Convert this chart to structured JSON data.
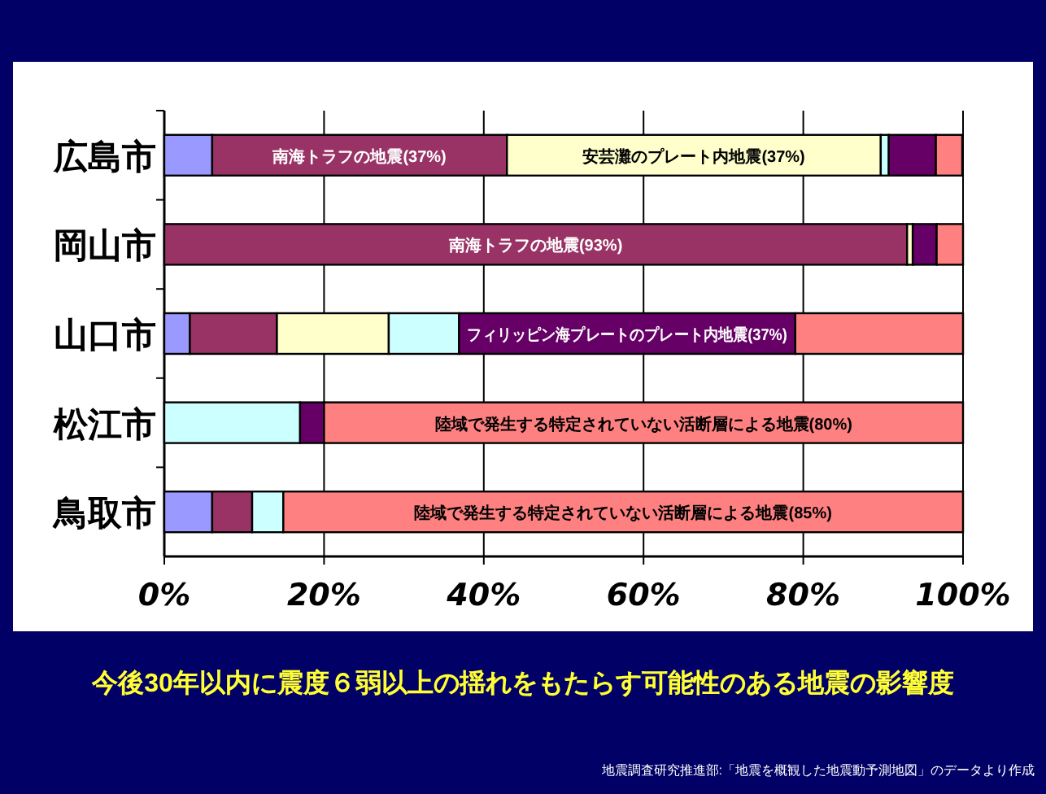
{
  "chart_data": {
    "type": "bar",
    "orientation": "horizontal",
    "stacked": true,
    "title": "今後30年以内に震度６弱以上の揺れをもたらす可能性のある地震の影響度",
    "annotations": [
      "地震調査研究推進部:「地震を概観した地震動予測地図」のデータより作成"
    ],
    "categories": [
      "広島市",
      "岡山市",
      "山口市",
      "松江市",
      "鳥取市"
    ],
    "xlim": [
      0,
      100
    ],
    "xticks": [
      {
        "value": 0,
        "label": "0%"
      },
      {
        "value": 20,
        "label": "20%"
      },
      {
        "value": 40,
        "label": "40%"
      },
      {
        "value": 60,
        "label": "60%"
      },
      {
        "value": 80,
        "label": "80%"
      },
      {
        "value": 100,
        "label": "100%"
      }
    ],
    "grid": "x",
    "series": [
      {
        "color": "#9999ff",
        "values": [
          6.0,
          0,
          3.2,
          0,
          6.0
        ]
      },
      {
        "color": "#993366",
        "values": [
          36.9,
          93,
          10.9,
          0,
          5.0
        ],
        "value_labels": [
          "南海トラフの地震(37%)",
          "南海トラフの地震(93%)",
          null,
          null,
          null
        ]
      },
      {
        "color": "#ffffcc",
        "values": [
          46.8,
          0.7,
          14.0,
          0,
          0
        ],
        "value_labels": [
          "安芸灘のプレート内地震(37%)",
          null,
          null,
          null,
          null
        ]
      },
      {
        "color": "#ccffff",
        "values": [
          1.0,
          0,
          8.8,
          17,
          3.9
        ]
      },
      {
        "color": "#660066",
        "values": [
          5.9,
          3,
          42.1,
          3,
          0
        ],
        "value_labels": [
          null,
          null,
          "フィリッピン海プレートのプレート内地震(37%)",
          null,
          null
        ]
      },
      {
        "color": "#ff8080",
        "values": [
          3.3,
          3.3,
          21.0,
          80,
          85.1
        ],
        "value_labels": [
          null,
          null,
          null,
          "陸域で発生する特定されていない活断層による地震(80%)",
          "陸域で発生する特定されていない活断層による地震(85%)"
        ]
      }
    ]
  }
}
